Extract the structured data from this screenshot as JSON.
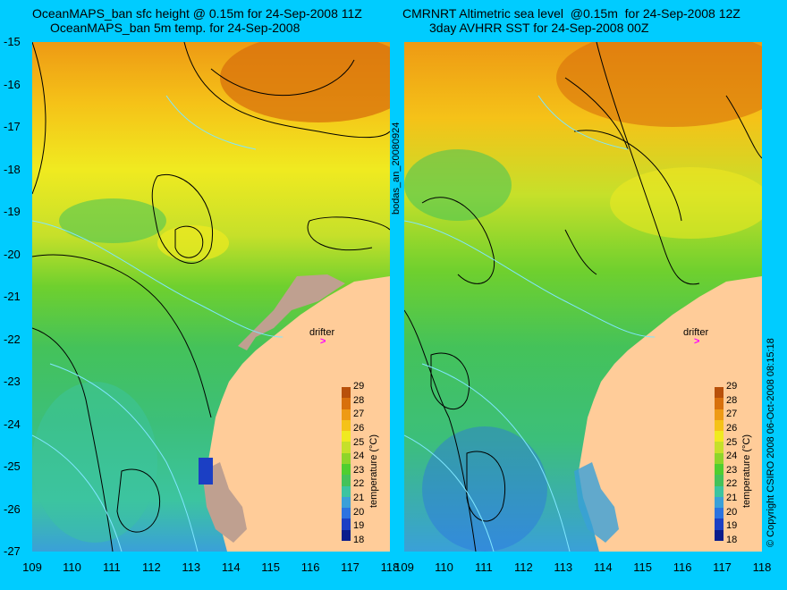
{
  "titles": {
    "left_line1": "OceanMAPS_ban sfc height @ 0.15m for 24-Sep-2008 11Z",
    "left_line2": "OceanMAPS_ban 5m temp. for 24-Sep-2008",
    "right_line1": "CMRNRT Altimetric sea level  @0.15m  for 24-Sep-2008 12Z",
    "right_line2": "3day AVHRR SST for 24-Sep-2008 00Z"
  },
  "y_ticks": [
    "-15",
    "-16",
    "-17",
    "-18",
    "-19",
    "-20",
    "-21",
    "-22",
    "-23",
    "-24",
    "-25",
    "-26",
    "-27"
  ],
  "x_ticks": [
    "109",
    "110",
    "111",
    "112",
    "113",
    "114",
    "115",
    "116",
    "117",
    "118"
  ],
  "center_label": "bodas_an_20080924",
  "right_label": "© Copyright CSIRO 2008   06-Oct-2008 08:15:18",
  "drifter": {
    "label": "drifter",
    "marker": ">"
  },
  "colorbar": {
    "ticks": [
      "29",
      "28",
      "27",
      "26",
      "25",
      "24",
      "23",
      "22",
      "21",
      "20",
      "19",
      "18"
    ],
    "title": "temperature (°C)",
    "colors": [
      "#0a1c8c",
      "#1b3fc4",
      "#2c73e0",
      "#3aa0d8",
      "#3cc4a0",
      "#44c25a",
      "#4fce30",
      "#8ed52a",
      "#c6e02a",
      "#f0ea20",
      "#f5c218",
      "#ee9a14",
      "#d8700c",
      "#b8500a"
    ]
  }
}
